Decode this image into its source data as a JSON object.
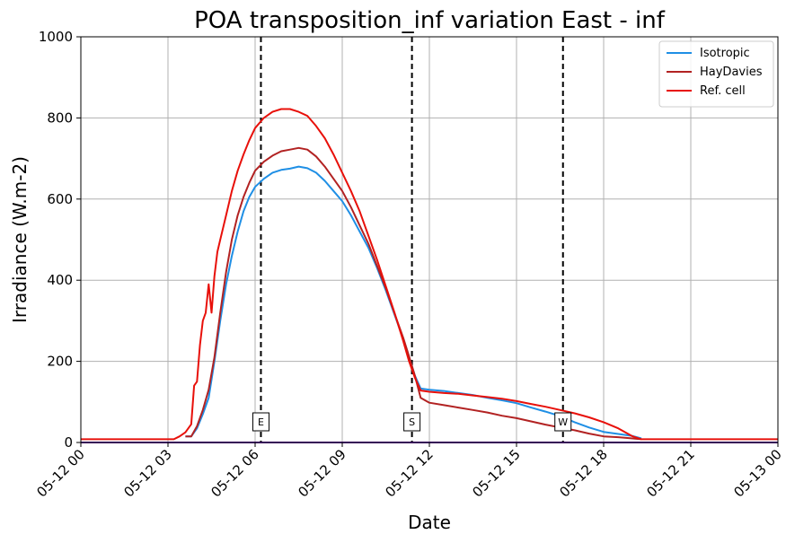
{
  "chart_data": {
    "type": "line",
    "title": "POA transposition_inf variation East - inf",
    "xlabel": "Date",
    "ylabel": "Irradiance (W.m-2)",
    "xlim_hours": [
      0,
      24
    ],
    "ylim": [
      0,
      1000
    ],
    "x_ticks": [
      {
        "hour": 0,
        "label": "05-12 00"
      },
      {
        "hour": 3,
        "label": "05-12 03"
      },
      {
        "hour": 6,
        "label": "05-12 06"
      },
      {
        "hour": 9,
        "label": "05-12 09"
      },
      {
        "hour": 12,
        "label": "05-12 12"
      },
      {
        "hour": 15,
        "label": "05-12 15"
      },
      {
        "hour": 18,
        "label": "05-12 18"
      },
      {
        "hour": 21,
        "label": "05-12 21"
      },
      {
        "hour": 24,
        "label": "05-13 00"
      }
    ],
    "y_ticks": [
      0,
      200,
      400,
      600,
      800,
      1000
    ],
    "grid": true,
    "legend_position": "top-right",
    "series": [
      {
        "name": "Isotropic",
        "color": "#1f8fe5",
        "points": [
          [
            3.6,
            15
          ],
          [
            3.8,
            15
          ],
          [
            4.0,
            35
          ],
          [
            4.2,
            70
          ],
          [
            4.4,
            110
          ],
          [
            4.6,
            200
          ],
          [
            4.8,
            300
          ],
          [
            5.0,
            390
          ],
          [
            5.2,
            460
          ],
          [
            5.4,
            520
          ],
          [
            5.6,
            570
          ],
          [
            5.8,
            605
          ],
          [
            6.0,
            630
          ],
          [
            6.3,
            650
          ],
          [
            6.6,
            665
          ],
          [
            6.9,
            672
          ],
          [
            7.2,
            675
          ],
          [
            7.5,
            680
          ],
          [
            7.8,
            676
          ],
          [
            8.1,
            665
          ],
          [
            8.4,
            645
          ],
          [
            8.7,
            620
          ],
          [
            9.0,
            595
          ],
          [
            9.3,
            560
          ],
          [
            9.6,
            520
          ],
          [
            9.9,
            480
          ],
          [
            10.2,
            430
          ],
          [
            10.5,
            375
          ],
          [
            10.8,
            315
          ],
          [
            11.1,
            255
          ],
          [
            11.3,
            210
          ],
          [
            11.5,
            165
          ],
          [
            11.7,
            133
          ],
          [
            12.0,
            130
          ],
          [
            12.5,
            127
          ],
          [
            13.0,
            122
          ],
          [
            13.5,
            117
          ],
          [
            14.0,
            110
          ],
          [
            14.5,
            104
          ],
          [
            15.0,
            97
          ],
          [
            15.5,
            86
          ],
          [
            16.0,
            76
          ],
          [
            16.5,
            65
          ],
          [
            17.0,
            50
          ],
          [
            17.5,
            37
          ],
          [
            18.0,
            26
          ],
          [
            18.5,
            21
          ],
          [
            19.0,
            16
          ],
          [
            19.3,
            10
          ]
        ]
      },
      {
        "name": "HayDavies",
        "color": "#b22222",
        "points": [
          [
            3.6,
            15
          ],
          [
            3.8,
            15
          ],
          [
            4.0,
            40
          ],
          [
            4.2,
            80
          ],
          [
            4.4,
            130
          ],
          [
            4.6,
            210
          ],
          [
            4.8,
            320
          ],
          [
            5.0,
            420
          ],
          [
            5.2,
            500
          ],
          [
            5.4,
            560
          ],
          [
            5.6,
            605
          ],
          [
            5.8,
            640
          ],
          [
            6.0,
            670
          ],
          [
            6.3,
            692
          ],
          [
            6.6,
            707
          ],
          [
            6.9,
            718
          ],
          [
            7.2,
            722
          ],
          [
            7.5,
            726
          ],
          [
            7.8,
            722
          ],
          [
            8.1,
            705
          ],
          [
            8.4,
            680
          ],
          [
            8.7,
            650
          ],
          [
            9.0,
            620
          ],
          [
            9.3,
            580
          ],
          [
            9.6,
            535
          ],
          [
            9.9,
            490
          ],
          [
            10.2,
            435
          ],
          [
            10.5,
            380
          ],
          [
            10.8,
            318
          ],
          [
            11.1,
            258
          ],
          [
            11.3,
            212
          ],
          [
            11.5,
            165
          ],
          [
            11.7,
            110
          ],
          [
            12.0,
            98
          ],
          [
            12.5,
            92
          ],
          [
            13.0,
            86
          ],
          [
            13.5,
            80
          ],
          [
            14.0,
            74
          ],
          [
            14.5,
            66
          ],
          [
            15.0,
            60
          ],
          [
            15.5,
            52
          ],
          [
            16.0,
            44
          ],
          [
            16.5,
            37
          ],
          [
            17.0,
            30
          ],
          [
            17.5,
            22
          ],
          [
            18.0,
            15
          ],
          [
            18.5,
            13
          ],
          [
            19.0,
            10
          ],
          [
            19.3,
            8
          ]
        ]
      },
      {
        "name": "Ref. cell",
        "color": "#e8100a",
        "points": [
          [
            0,
            8
          ],
          [
            3.2,
            8
          ],
          [
            3.4,
            15
          ],
          [
            3.6,
            25
          ],
          [
            3.8,
            45
          ],
          [
            3.9,
            140
          ],
          [
            4.0,
            150
          ],
          [
            4.1,
            240
          ],
          [
            4.2,
            300
          ],
          [
            4.3,
            320
          ],
          [
            4.4,
            390
          ],
          [
            4.5,
            320
          ],
          [
            4.6,
            410
          ],
          [
            4.7,
            470
          ],
          [
            4.8,
            500
          ],
          [
            5.0,
            560
          ],
          [
            5.2,
            620
          ],
          [
            5.4,
            670
          ],
          [
            5.6,
            710
          ],
          [
            5.8,
            745
          ],
          [
            6.0,
            775
          ],
          [
            6.3,
            800
          ],
          [
            6.6,
            815
          ],
          [
            6.9,
            822
          ],
          [
            7.2,
            822
          ],
          [
            7.5,
            815
          ],
          [
            7.8,
            805
          ],
          [
            8.1,
            780
          ],
          [
            8.4,
            750
          ],
          [
            8.7,
            710
          ],
          [
            9.0,
            665
          ],
          [
            9.3,
            620
          ],
          [
            9.6,
            570
          ],
          [
            9.9,
            510
          ],
          [
            10.2,
            450
          ],
          [
            10.5,
            385
          ],
          [
            10.8,
            320
          ],
          [
            11.1,
            250
          ],
          [
            11.3,
            200
          ],
          [
            11.5,
            160
          ],
          [
            11.7,
            128
          ],
          [
            12.0,
            125
          ],
          [
            12.5,
            122
          ],
          [
            13.0,
            120
          ],
          [
            13.5,
            116
          ],
          [
            14.0,
            112
          ],
          [
            14.5,
            108
          ],
          [
            15.0,
            102
          ],
          [
            15.5,
            95
          ],
          [
            16.0,
            88
          ],
          [
            16.5,
            80
          ],
          [
            17.0,
            72
          ],
          [
            17.5,
            62
          ],
          [
            18.0,
            50
          ],
          [
            18.5,
            35
          ],
          [
            19.0,
            15
          ],
          [
            19.3,
            8
          ],
          [
            24.0,
            8
          ]
        ]
      },
      {
        "name": "",
        "color": "#6a0dad",
        "points": [
          [
            0,
            0
          ],
          [
            24,
            0
          ]
        ]
      }
    ],
    "vlines": [
      {
        "hour": 6.2,
        "label": "E"
      },
      {
        "hour": 11.4,
        "label": "S"
      },
      {
        "hour": 16.6,
        "label": "W"
      }
    ]
  }
}
